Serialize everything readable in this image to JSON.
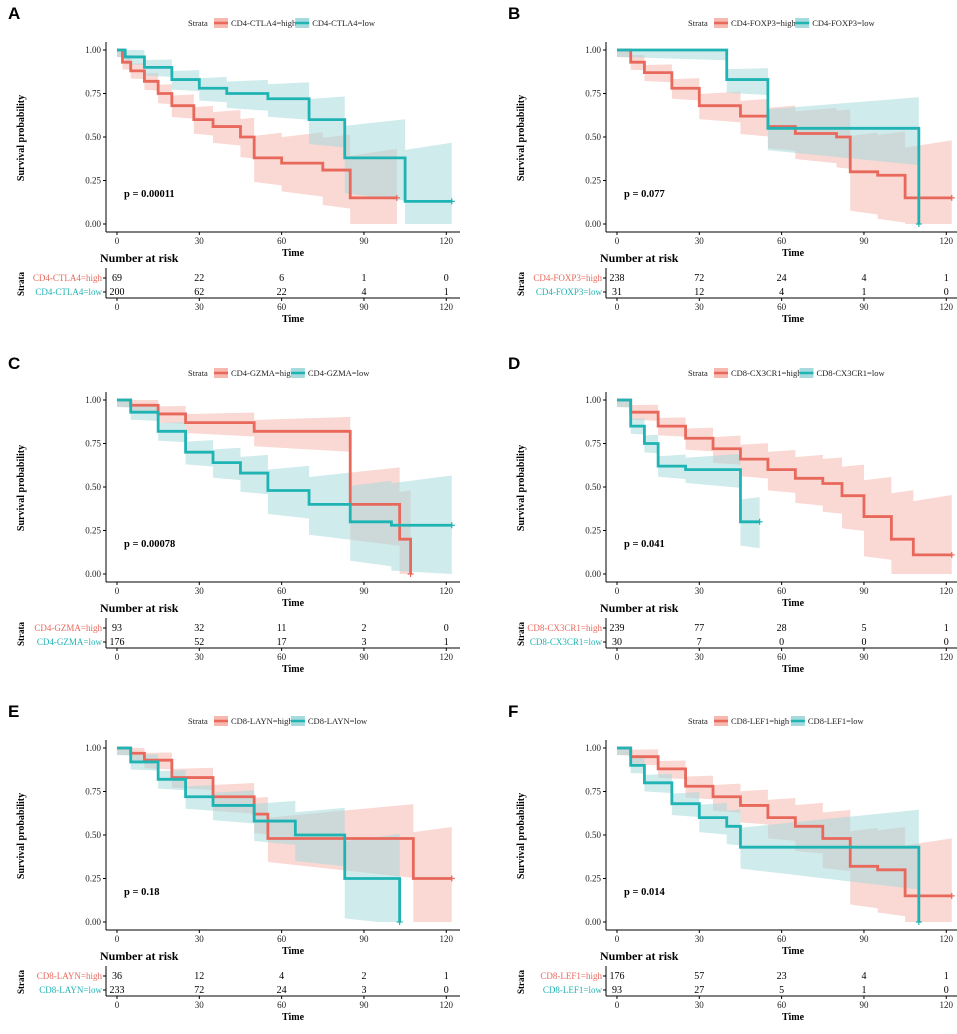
{
  "figure": {
    "colors": {
      "high": "#E8685C",
      "low": "#1FB3B3",
      "high_ribbon": "#F6B8AF",
      "low_ribbon": "#A7DADD"
    },
    "xlabel": "Time",
    "ylabel": "Survival probability",
    "x_ticks": [
      0,
      30,
      60,
      90,
      120
    ],
    "y_ticks": [
      "0.00",
      "0.25",
      "0.50",
      "0.75",
      "1.00"
    ],
    "legend_title": "Strata",
    "risk_title": "Number at risk",
    "risk_ylabel": "Strata"
  },
  "chart_data": [
    {
      "panel": "A",
      "type": "line",
      "title": "",
      "xlabel": "Time",
      "ylabel": "Survival probability",
      "xlim": [
        0,
        125
      ],
      "ylim": [
        0,
        1
      ],
      "p_value": "p = 0.00011",
      "series": [
        {
          "name": "CD4-CTLA4=high",
          "group": "high",
          "x": [
            0,
            2,
            5,
            10,
            15,
            20,
            28,
            35,
            45,
            50,
            60,
            75,
            85,
            102
          ],
          "y": [
            1.0,
            0.93,
            0.88,
            0.82,
            0.75,
            0.68,
            0.6,
            0.56,
            0.5,
            0.38,
            0.35,
            0.31,
            0.15,
            0.15
          ]
        },
        {
          "name": "CD4-CTLA4=low",
          "group": "low",
          "x": [
            0,
            3,
            10,
            20,
            30,
            40,
            55,
            70,
            83,
            92,
            105,
            122
          ],
          "y": [
            1.0,
            0.96,
            0.9,
            0.83,
            0.78,
            0.75,
            0.72,
            0.6,
            0.38,
            0.38,
            0.13,
            0.13
          ]
        }
      ],
      "risk_table": {
        "rows": [
          {
            "label": "CD4-CTLA4=high",
            "group": "high",
            "values": [
              69,
              22,
              6,
              1,
              0
            ]
          },
          {
            "label": "CD4-CTLA4=low",
            "group": "low",
            "values": [
              200,
              62,
              22,
              4,
              1
            ]
          }
        ]
      }
    },
    {
      "panel": "B",
      "type": "line",
      "title": "",
      "xlabel": "Time",
      "ylabel": "Survival probability",
      "xlim": [
        0,
        125
      ],
      "ylim": [
        0,
        1
      ],
      "p_value": "p = 0.077",
      "series": [
        {
          "name": "CD4-FOXP3=high",
          "group": "high",
          "x": [
            0,
            5,
            10,
            20,
            30,
            45,
            55,
            65,
            80,
            85,
            95,
            105,
            122
          ],
          "y": [
            1.0,
            0.93,
            0.87,
            0.78,
            0.68,
            0.62,
            0.56,
            0.52,
            0.5,
            0.3,
            0.28,
            0.15,
            0.15
          ]
        },
        {
          "name": "CD4-FOXP3=low",
          "group": "low",
          "x": [
            0,
            25,
            40,
            55,
            70,
            108,
            110
          ],
          "y": [
            1.0,
            1.0,
            0.83,
            0.55,
            0.55,
            0.55,
            0.0
          ]
        }
      ],
      "risk_table": {
        "rows": [
          {
            "label": "CD4-FOXP3=high",
            "group": "high",
            "values": [
              238,
              72,
              24,
              4,
              1
            ]
          },
          {
            "label": "CD4-FOXP3=low",
            "group": "low",
            "values": [
              31,
              12,
              4,
              1,
              0
            ]
          }
        ]
      }
    },
    {
      "panel": "C",
      "type": "line",
      "title": "",
      "xlabel": "Time",
      "ylabel": "Survival probability",
      "xlim": [
        0,
        125
      ],
      "ylim": [
        0,
        1
      ],
      "p_value": "p = 0.00078",
      "series": [
        {
          "name": "CD4-GZMA=high",
          "group": "high",
          "x": [
            0,
            5,
            15,
            25,
            50,
            80,
            85,
            103,
            107
          ],
          "y": [
            1.0,
            0.97,
            0.92,
            0.87,
            0.82,
            0.82,
            0.4,
            0.2,
            0.0
          ]
        },
        {
          "name": "CD4-GZMA=low",
          "group": "low",
          "x": [
            0,
            5,
            15,
            25,
            35,
            45,
            55,
            70,
            85,
            100,
            122
          ],
          "y": [
            1.0,
            0.93,
            0.82,
            0.7,
            0.64,
            0.58,
            0.48,
            0.4,
            0.3,
            0.28,
            0.28
          ]
        }
      ],
      "risk_table": {
        "rows": [
          {
            "label": "CD4-GZMA=high",
            "group": "high",
            "values": [
              93,
              32,
              11,
              2,
              0
            ]
          },
          {
            "label": "CD4-GZMA=low",
            "group": "low",
            "values": [
              176,
              52,
              17,
              3,
              1
            ]
          }
        ]
      }
    },
    {
      "panel": "D",
      "type": "line",
      "title": "",
      "xlabel": "Time",
      "ylabel": "Survival probability",
      "xlim": [
        0,
        125
      ],
      "ylim": [
        0,
        1
      ],
      "p_value": "p = 0.041",
      "series": [
        {
          "name": "CD8-CX3CR1=high",
          "group": "high",
          "x": [
            0,
            5,
            15,
            25,
            35,
            45,
            55,
            65,
            75,
            82,
            90,
            100,
            108,
            122
          ],
          "y": [
            1.0,
            0.93,
            0.85,
            0.78,
            0.72,
            0.66,
            0.6,
            0.55,
            0.52,
            0.45,
            0.33,
            0.2,
            0.11,
            0.11
          ]
        },
        {
          "name": "CD8-CX3CR1=low",
          "group": "low",
          "x": [
            0,
            5,
            10,
            15,
            25,
            40,
            45,
            52
          ],
          "y": [
            1.0,
            0.85,
            0.75,
            0.62,
            0.6,
            0.6,
            0.3,
            0.3
          ]
        }
      ],
      "risk_table": {
        "rows": [
          {
            "label": "CD8-CX3CR1=high",
            "group": "high",
            "values": [
              239,
              77,
              28,
              5,
              1
            ]
          },
          {
            "label": "CD8-CX3CR1=low",
            "group": "low",
            "values": [
              30,
              7,
              0,
              0,
              0
            ]
          }
        ]
      }
    },
    {
      "panel": "E",
      "type": "line",
      "title": "",
      "xlabel": "Time",
      "ylabel": "Survival probability",
      "xlim": [
        0,
        125
      ],
      "ylim": [
        0,
        1
      ],
      "p_value": "p = 0.18",
      "series": [
        {
          "name": "CD8-LAYN=high",
          "group": "high",
          "x": [
            0,
            5,
            10,
            20,
            35,
            50,
            55,
            60,
            75,
            85,
            95,
            108,
            122
          ],
          "y": [
            1.0,
            0.97,
            0.93,
            0.83,
            0.72,
            0.62,
            0.48,
            0.48,
            0.48,
            0.48,
            0.48,
            0.25,
            0.25
          ]
        },
        {
          "name": "CD8-LAYN=low",
          "group": "low",
          "x": [
            0,
            5,
            15,
            25,
            35,
            50,
            65,
            83,
            95,
            103
          ],
          "y": [
            1.0,
            0.92,
            0.82,
            0.72,
            0.67,
            0.58,
            0.5,
            0.25,
            0.25,
            0.0
          ]
        }
      ],
      "risk_table": {
        "rows": [
          {
            "label": "CD8-LAYN=high",
            "group": "high",
            "values": [
              36,
              12,
              4,
              2,
              1
            ]
          },
          {
            "label": "CD8-LAYN=low",
            "group": "low",
            "values": [
              233,
              72,
              24,
              3,
              0
            ]
          }
        ]
      }
    },
    {
      "panel": "F",
      "type": "line",
      "title": "",
      "xlabel": "Time",
      "ylabel": "Survival probability",
      "xlim": [
        0,
        125
      ],
      "ylim": [
        0,
        1
      ],
      "p_value": "p = 0.014",
      "series": [
        {
          "name": "CD8-LEF1=high",
          "group": "high",
          "x": [
            0,
            5,
            15,
            25,
            35,
            45,
            55,
            65,
            75,
            85,
            95,
            105,
            122
          ],
          "y": [
            1.0,
            0.95,
            0.88,
            0.78,
            0.72,
            0.67,
            0.6,
            0.55,
            0.48,
            0.32,
            0.3,
            0.15,
            0.15
          ]
        },
        {
          "name": "CD8-LEF1=low",
          "group": "low",
          "x": [
            0,
            5,
            10,
            20,
            30,
            40,
            45,
            60,
            80,
            108,
            110
          ],
          "y": [
            1.0,
            0.9,
            0.8,
            0.68,
            0.6,
            0.55,
            0.43,
            0.43,
            0.43,
            0.43,
            0.0
          ]
        }
      ],
      "risk_table": {
        "rows": [
          {
            "label": "CD8-LEF1=high",
            "group": "high",
            "values": [
              176,
              57,
              23,
              4,
              1
            ]
          },
          {
            "label": "CD8-LEF1=low",
            "group": "low",
            "values": [
              93,
              27,
              5,
              1,
              0
            ]
          }
        ]
      }
    }
  ]
}
